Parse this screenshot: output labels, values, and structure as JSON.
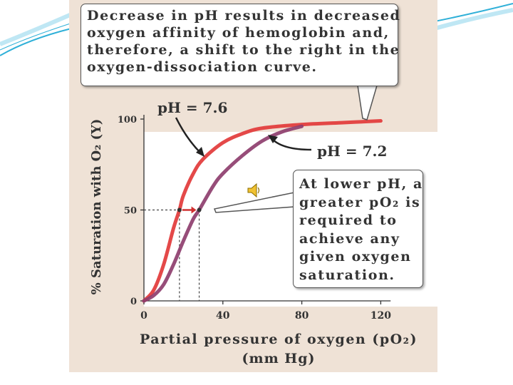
{
  "callouts": {
    "top_lines": [
      "Decrease in pH results in decreased",
      "oxygen affinity of hemoglobin and,",
      "therefore, a shift to the right in the",
      "oxygen-dissociation curve."
    ],
    "bottom_lines": [
      "At lower pH, a",
      "greater pO₂ is",
      "required to",
      "achieve any",
      "given oxygen",
      "saturation."
    ]
  },
  "icons": {
    "speaker": "speaker-icon"
  },
  "colors": {
    "curve_ph76": "#e23a3a",
    "curve_ph72": "#8e3e6e",
    "figure_background": "#efe2d6",
    "slide_decoration": "#2fb0d8"
  },
  "chart_data": {
    "type": "line",
    "title": "",
    "xlabel": "Partial pressure of oxygen (pO₂)",
    "xlabel_unit": "(mm Hg)",
    "ylabel": "% Saturation with O₂ (Y)",
    "xlim": [
      0,
      125
    ],
    "ylim": [
      0,
      100
    ],
    "x_ticks": [
      0,
      40,
      80,
      120
    ],
    "y_ticks": [
      0,
      50,
      100
    ],
    "grid": false,
    "series": [
      {
        "name": "pH = 7.6",
        "x": [
          0,
          5,
          10,
          15,
          18,
          20,
          25,
          30,
          40,
          50,
          60,
          80,
          100,
          120
        ],
        "y": [
          0,
          6,
          20,
          40,
          50,
          58,
          70,
          78,
          87,
          92,
          95,
          97,
          98,
          99
        ]
      },
      {
        "name": "pH = 7.2",
        "x": [
          0,
          5,
          10,
          15,
          20,
          25,
          28,
          35,
          40,
          50,
          60,
          70,
          80
        ],
        "y": [
          0,
          3,
          9,
          20,
          33,
          45,
          50,
          63,
          70,
          80,
          88,
          93,
          96
        ]
      }
    ],
    "annotations": {
      "p50_ph76": {
        "x": 18,
        "y": 50
      },
      "p50_ph72": {
        "x": 28,
        "y": 50
      }
    }
  }
}
